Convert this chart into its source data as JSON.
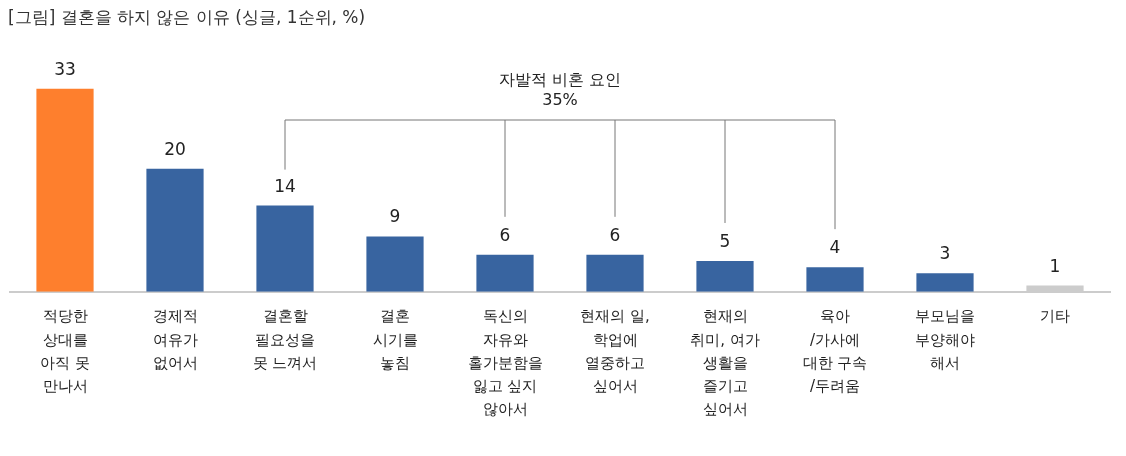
{
  "chart_data": {
    "type": "bar",
    "title": "[그림] 결혼을 하지 않은 이유 (싱글, 1순위, %)",
    "categories": [
      "적당한\n상대를\n아직 못\n만나서",
      "경제적\n여유가\n없어서",
      "결혼할\n필요성을\n못 느껴서",
      "결혼\n시기를\n놓침",
      "독신의\n자유와\n홀가분함을\n잃고 싶지\n않아서",
      "현재의 일,\n학업에\n열중하고\n싶어서",
      "현재의\n취미, 여가\n생활을\n즐기고\n싶어서",
      "육아\n/가사에\n대한 구속\n/두려움",
      "부모님을\n부양해야\n해서",
      "기타"
    ],
    "values": [
      33,
      20,
      14,
      9,
      6,
      6,
      5,
      4,
      3,
      1
    ],
    "colors": [
      "#fe7f2d",
      "#3864a0",
      "#3864a0",
      "#3864a0",
      "#3864a0",
      "#3864a0",
      "#3864a0",
      "#3864a0",
      "#3864a0",
      "#cccccc"
    ],
    "data_labels": true,
    "annotations": [
      "자발적 비혼 요인\n35%"
    ]
  }
}
